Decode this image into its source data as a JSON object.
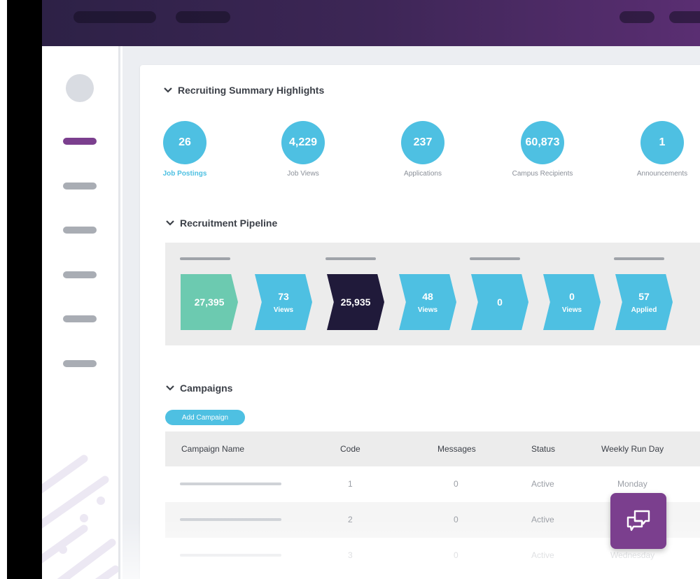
{
  "summary": {
    "title": "Recruiting Summary Highlights",
    "stats": [
      {
        "value": "26",
        "label": "Job Postings"
      },
      {
        "value": "4,229",
        "label": "Job Views"
      },
      {
        "value": "237",
        "label": "Applications"
      },
      {
        "value": "60,873",
        "label": "Campus Recipients"
      },
      {
        "value": "1",
        "label": "Announcements"
      }
    ]
  },
  "pipeline": {
    "title": "Recruitment Pipeline",
    "steps": [
      {
        "value": "27,395",
        "sub": "",
        "color": "#6ccab0"
      },
      {
        "value": "73",
        "sub": "Views",
        "color": "#4ec0e2"
      },
      {
        "value": "25,935",
        "sub": "",
        "color": "#201a3a"
      },
      {
        "value": "48",
        "sub": "Views",
        "color": "#4ec0e2"
      },
      {
        "value": "0",
        "sub": "",
        "color": "#4ec0e2"
      },
      {
        "value": "0",
        "sub": "Views",
        "color": "#4ec0e2"
      },
      {
        "value": "57",
        "sub": "Applied",
        "color": "#4ec0e2"
      }
    ]
  },
  "campaigns": {
    "title": "Campaigns",
    "add_label": "Add Campaign",
    "columns": [
      "Campaign Name",
      "Code",
      "Messages",
      "Status",
      "Weekly Run Day"
    ],
    "rows": [
      {
        "code": "1",
        "messages": "0",
        "status": "Active",
        "day": "Monday"
      },
      {
        "code": "2",
        "messages": "0",
        "status": "Active",
        "day": ""
      },
      {
        "code": "3",
        "messages": "0",
        "status": "Active",
        "day": "Wednesday"
      }
    ]
  },
  "colors": {
    "accent": "#4ec0e2",
    "brand": "#7b3f8e",
    "dark": "#201a3a",
    "green": "#6ccab0"
  },
  "icons": {
    "chat": "chat-bubbles-icon",
    "chevron": "chevron-down-icon"
  }
}
